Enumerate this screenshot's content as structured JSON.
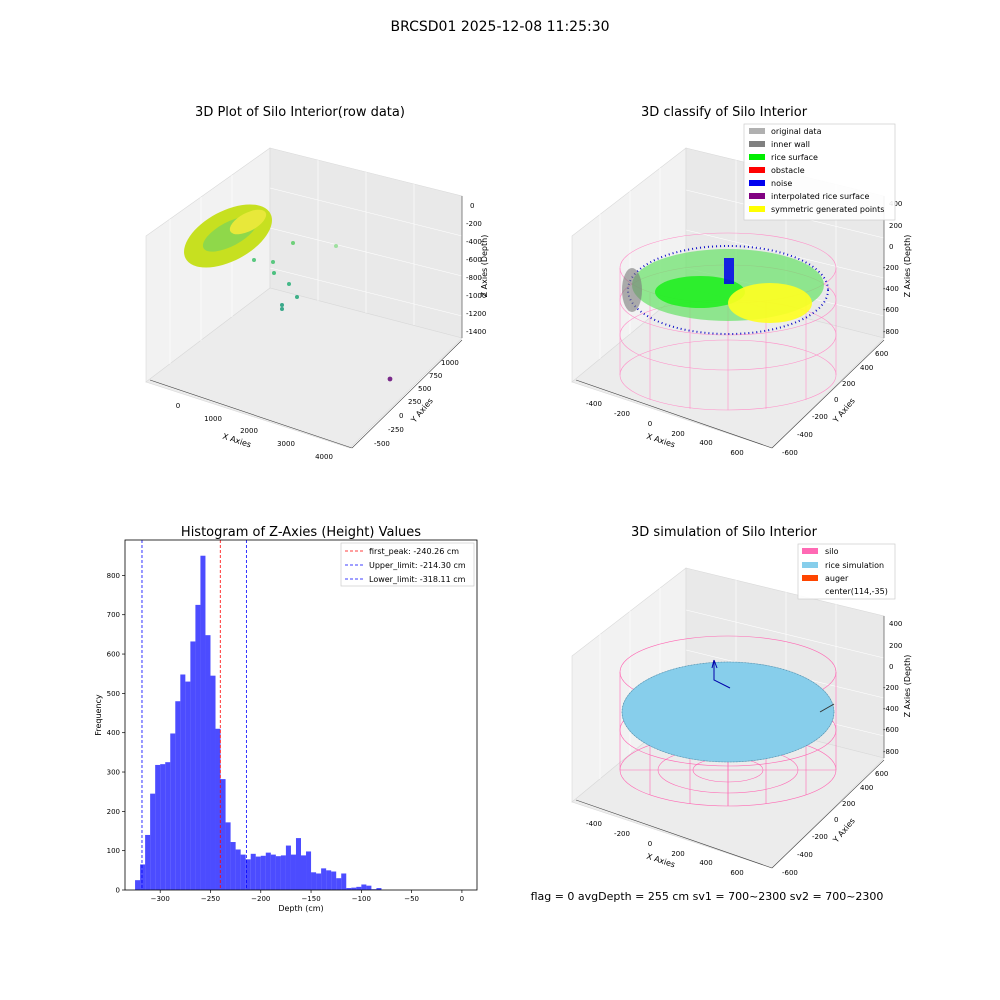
{
  "figure": {
    "suptitle": "BRCSD01 2025-12-08 11:25:30",
    "footer": "flag = 0     avgDepth = 255 cm  sv1 = 700~2300  sv2 = 700~2300"
  },
  "panels": {
    "raw": {
      "title": "3D Plot of Silo Interior(row data)",
      "xlabel": "X Axies",
      "ylabel": "Y Axies",
      "zlabel": "Z Axies (Depth)",
      "xticks": [
        "0",
        "1000",
        "2000",
        "3000",
        "4000"
      ],
      "yticks": [
        "-500",
        "-250",
        "0",
        "250",
        "500",
        "750",
        "1000"
      ],
      "zticks": [
        "0",
        "-200",
        "-400",
        "-600",
        "-800",
        "-1000",
        "-1200",
        "-1400"
      ]
    },
    "classify": {
      "title": "3D classify of Silo Interior",
      "xlabel": "X Axies",
      "ylabel": "Y Axies",
      "zlabel": "Z Axies (Depth)",
      "xticks": [
        "-400",
        "-200",
        "0",
        "200",
        "400",
        "600"
      ],
      "yticks": [
        "-600",
        "-400",
        "-200",
        "0",
        "200",
        "400",
        "600"
      ],
      "zticks": [
        "400",
        "200",
        "0",
        "-200",
        "-400",
        "-600",
        "-800"
      ],
      "legend": [
        {
          "label": "original data",
          "color": "#b0b0b0"
        },
        {
          "label": "inner wall",
          "color": "#808080"
        },
        {
          "label": "rice surface",
          "color": "#00ee00"
        },
        {
          "label": "obstacle",
          "color": "#ff0000"
        },
        {
          "label": "noise",
          "color": "#0000ee"
        },
        {
          "label": "interpolated rice surface",
          "color": "#800080"
        },
        {
          "label": "symmetric generated points",
          "color": "#ffff00"
        }
      ]
    },
    "simulation": {
      "title": "3D simulation of Silo Interior",
      "xlabel": "X Axies",
      "ylabel": "Y Axies",
      "zlabel": "Z Axies (Depth)",
      "xticks": [
        "-400",
        "-200",
        "0",
        "200",
        "400",
        "600"
      ],
      "yticks": [
        "-600",
        "-400",
        "-200",
        "0",
        "200",
        "400",
        "600"
      ],
      "zticks": [
        "400",
        "200",
        "0",
        "-200",
        "-400",
        "-600",
        "-800"
      ],
      "legend": [
        {
          "label": "silo",
          "color": "#ff69b4"
        },
        {
          "label": "rice simulation",
          "color": "#87ceeb"
        },
        {
          "label": "auger",
          "color": "#ff4500"
        },
        {
          "label": "center(114,-35)",
          "color": ""
        }
      ]
    }
  },
  "chart_data": [
    {
      "type": "bar",
      "title": "Histogram of Z-Axies (Height) Values",
      "xlabel": "Depth (cm)",
      "ylabel": "Frequency",
      "xlim": [
        -335,
        15
      ],
      "ylim": [
        0,
        890
      ],
      "xticks": [
        -300,
        -250,
        -200,
        -150,
        -100,
        -50,
        0
      ],
      "yticks": [
        0,
        100,
        200,
        300,
        400,
        500,
        600,
        700,
        800
      ],
      "bin_width": 5,
      "bin_start": -325,
      "values": [
        25,
        65,
        140,
        245,
        318,
        320,
        325,
        398,
        480,
        548,
        530,
        632,
        725,
        850,
        648,
        545,
        410,
        282,
        172,
        122,
        103,
        90,
        78,
        92,
        85,
        87,
        95,
        90,
        86,
        88,
        113,
        90,
        132,
        88,
        98,
        45,
        42,
        55,
        50,
        47,
        30,
        42,
        5,
        6,
        8,
        14,
        11,
        2,
        5
      ],
      "bar_color": "#0000ff",
      "vlines": [
        {
          "label": "first_peak: -240.26 cm",
          "x": -240.26,
          "color": "#ff0000"
        },
        {
          "label": "Upper_limit: -214.30 cm",
          "x": -214.3,
          "color": "#0000ff"
        },
        {
          "label": "Lower_limit: -318.11 cm",
          "x": -318.11,
          "color": "#0000ff"
        }
      ],
      "legend_position": "top-right",
      "grid": false
    }
  ]
}
